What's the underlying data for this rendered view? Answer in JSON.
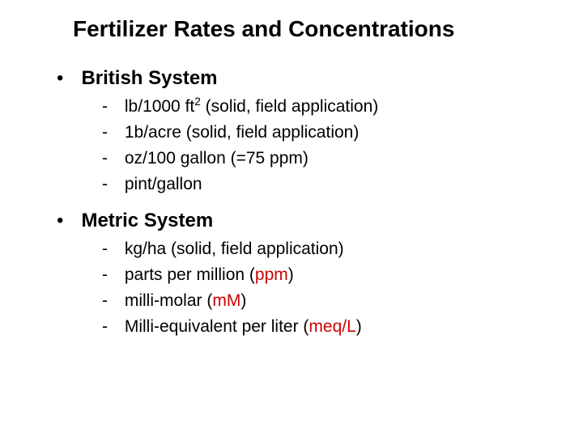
{
  "colors": {
    "background": "#ffffff",
    "text": "#000000",
    "highlight": "#cc0000"
  },
  "typography": {
    "family": "Arial",
    "title_fontsize": 28,
    "heading_fontsize": 24,
    "body_fontsize": 21
  },
  "slide": {
    "title": "Fertilizer Rates and Concentrations",
    "sections": [
      {
        "heading": "British System",
        "items": [
          {
            "prefix": "lb/1000 ft",
            "sup": "2",
            "rest": " (solid, field application)"
          },
          {
            "text": "1b/acre (solid, field application)"
          },
          {
            "text": "oz/100 gallon (=75 ppm)"
          },
          {
            "text": "pint/gallon"
          }
        ]
      },
      {
        "heading": "Metric System",
        "items": [
          {
            "text": "kg/ha (solid, field application)"
          },
          {
            "before": "parts per million (",
            "hl": "ppm",
            "after": ")"
          },
          {
            "before": "milli-molar (",
            "hl": "mM",
            "after": ")"
          },
          {
            "before": "Milli-equivalent per liter (",
            "hl": "meq/L",
            "after": ")"
          }
        ]
      }
    ]
  }
}
